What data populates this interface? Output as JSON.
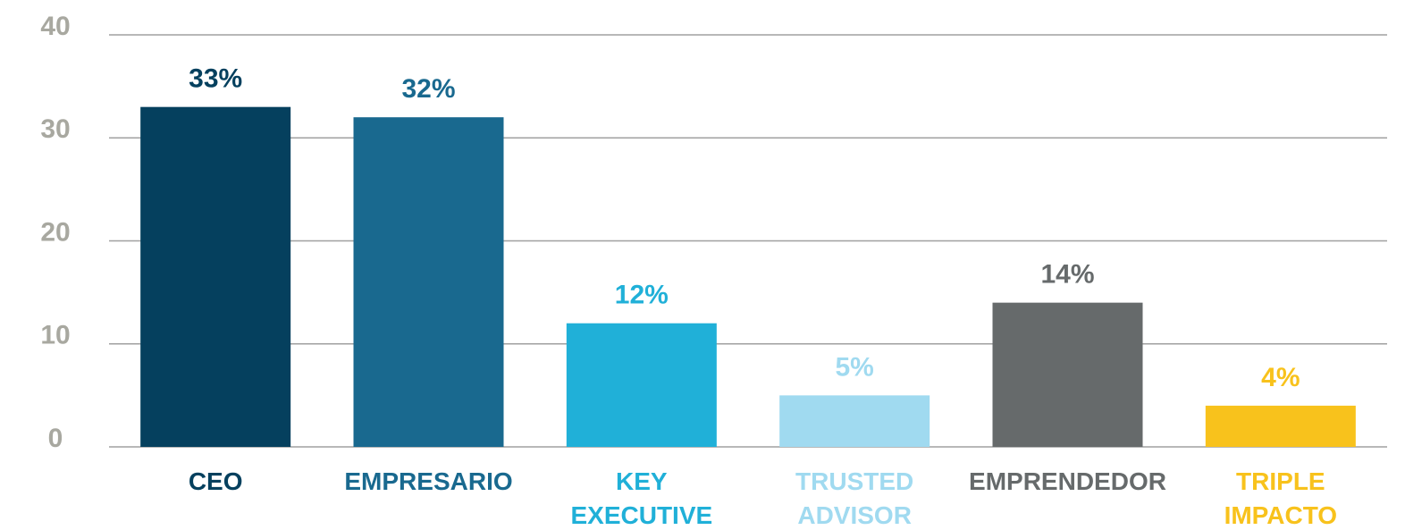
{
  "chart_data": {
    "type": "bar",
    "categories": [
      "CEO",
      "EMPRESARIO",
      "KEY\nEXECUTIVE",
      "TRUSTED\nADVISOR",
      "EMPRENDEDOR",
      "TRIPLE\nIMPACTO"
    ],
    "values": [
      33,
      32,
      12,
      5,
      14,
      4
    ],
    "value_labels": [
      "33%",
      "32%",
      "12%",
      "5%",
      "14%",
      "4%"
    ],
    "colors": [
      "#05405e",
      "#19698f",
      "#20b0d8",
      "#a0daf0",
      "#666a6b",
      "#f8c21c"
    ],
    "ylim": [
      0,
      40
    ],
    "yticks": [
      0,
      10,
      20,
      30,
      40
    ],
    "grid": true
  }
}
